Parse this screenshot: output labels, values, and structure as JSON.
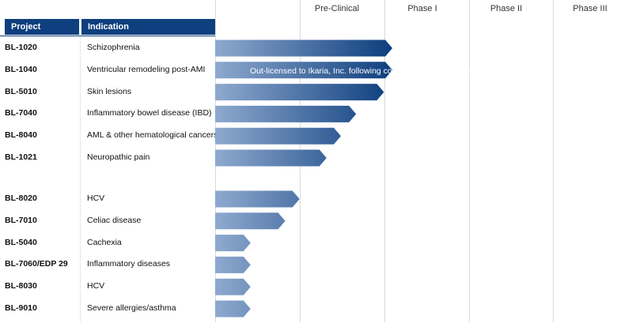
{
  "header": {
    "project": "Project",
    "indication": "Indication"
  },
  "phases": [
    "Pre-Clinical",
    "Phase I",
    "Phase II",
    "Phase III"
  ],
  "chart_data": {
    "type": "bar",
    "orientation": "horizontal",
    "stages": [
      "Pre-Clinical",
      "Phase I",
      "Phase II",
      "Phase III"
    ],
    "groups": [
      {
        "rows": [
          {
            "project": "BL-1020",
            "indication": "Schizophrenia",
            "progress": 2.1
          },
          {
            "project": "BL-1040",
            "indication": "Ventricular remodeling post-AMI",
            "progress": 2.1,
            "note": "Out-licensed to Ikaria, Inc. following completion of Phase I/II"
          },
          {
            "project": "BL-5010",
            "indication": "Skin lesions",
            "progress": 2.0
          },
          {
            "project": "BL-7040",
            "indication": "Inflammatory bowel disease (IBD)",
            "progress": 1.67
          },
          {
            "project": "BL-8040",
            "indication": "AML & other hematological cancers",
            "progress": 1.49
          },
          {
            "project": "BL-1021",
            "indication": "Neuropathic pain",
            "progress": 1.32
          }
        ]
      },
      {
        "rows": [
          {
            "project": "BL-8020",
            "indication": "HCV",
            "progress": 1.0
          },
          {
            "project": "BL-7010",
            "indication": "Celiac disease",
            "progress": 0.83
          },
          {
            "project": "BL-5040",
            "indication": "Cachexia",
            "progress": 0.42
          },
          {
            "project": "BL-7060/EDP 29",
            "indication": "Inflammatory diseases",
            "progress": 0.42
          },
          {
            "project": "BL-8030",
            "indication": "HCV",
            "progress": 0.42
          },
          {
            "project": "BL-9010",
            "indication": "Severe allergies/asthma",
            "progress": 0.42
          }
        ]
      }
    ],
    "colors": {
      "start": "#8ea9cf",
      "mid": "#0e3f7e",
      "end": "#ee7b26",
      "header": "#0e3f7e"
    }
  }
}
